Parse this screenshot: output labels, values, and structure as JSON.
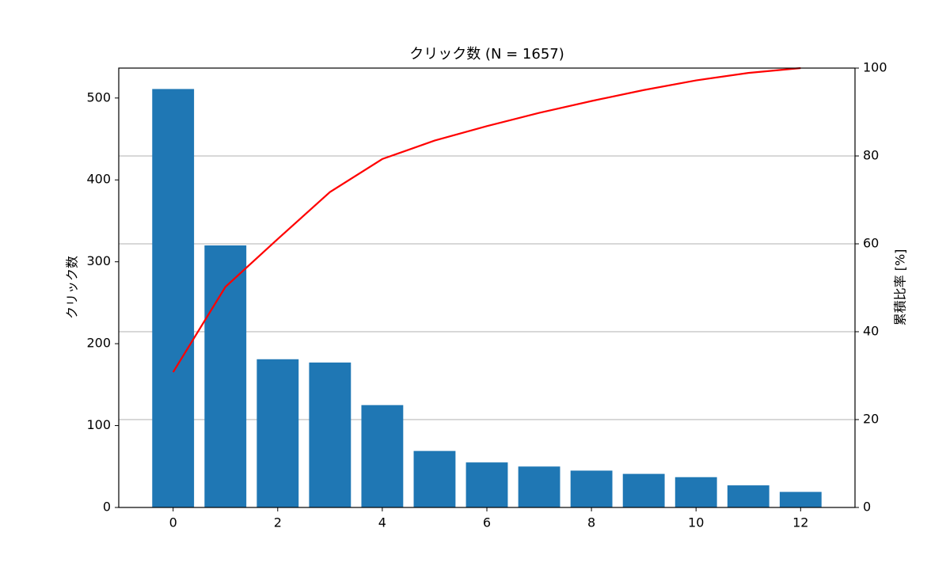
{
  "chart_data": {
    "type": "pareto",
    "title": "クリック数 (N = 1657)",
    "y_label": "クリック数",
    "y2_label": "累積比率 [%]",
    "x": [
      0,
      1,
      2,
      3,
      4,
      5,
      6,
      7,
      8,
      9,
      10,
      11,
      12
    ],
    "series": [
      {
        "name": "クリック数",
        "type": "bar",
        "color": "#1f77b4",
        "values": [
          511,
          320,
          181,
          177,
          125,
          69,
          55,
          50,
          45,
          41,
          37,
          27,
          19
        ]
      },
      {
        "name": "累積比率",
        "type": "line",
        "axis": "y2",
        "color": "#ff0000",
        "values": [
          30.8,
          50.2,
          61.1,
          71.8,
          79.3,
          83.5,
          86.8,
          89.8,
          92.5,
          95.0,
          97.2,
          98.9,
          100
        ]
      }
    ],
    "xlim": [
      -1.04,
      13.04
    ],
    "xticks": [
      0,
      2,
      4,
      6,
      8,
      10,
      12
    ],
    "ylim": [
      0,
      536.55
    ],
    "yticks": [
      0,
      100,
      200,
      300,
      400,
      500
    ],
    "y2lim": [
      0,
      100
    ],
    "y2ticks": [
      0,
      20,
      40,
      60,
      80,
      100
    ],
    "grid": "y2"
  }
}
